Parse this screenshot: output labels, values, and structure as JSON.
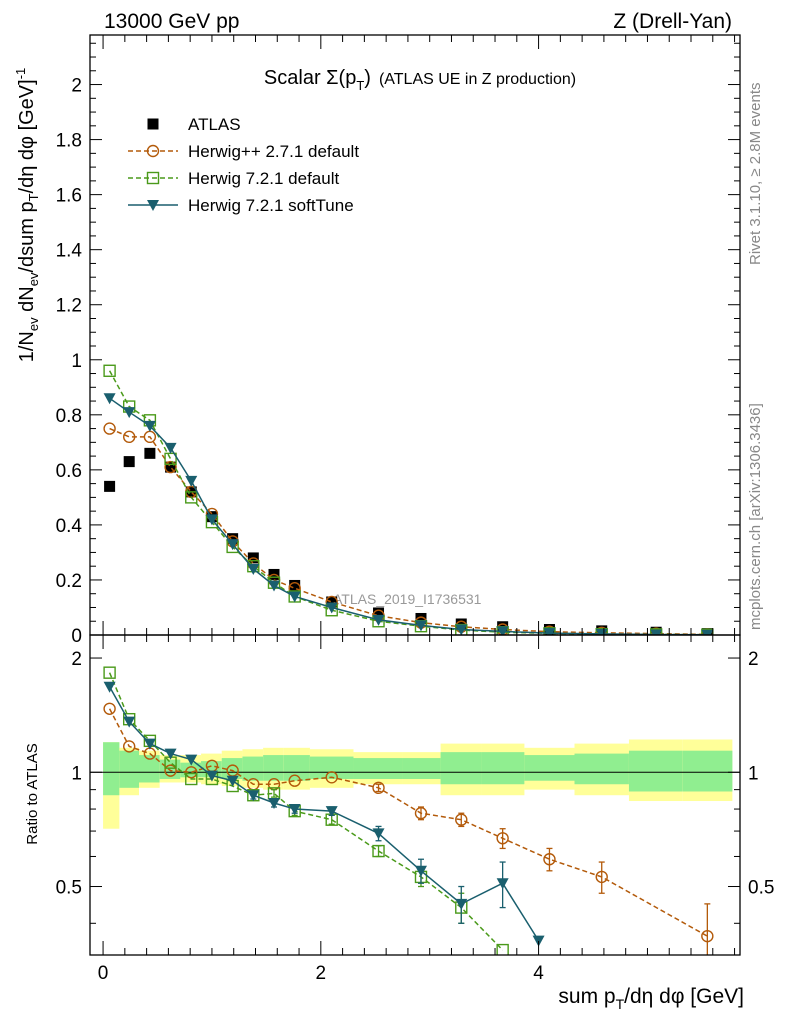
{
  "header": {
    "left": "13000 GeV pp",
    "right": "Z (Drell-Yan)"
  },
  "side_labels": {
    "rivet": "Rivet 3.1.10, ≥ 2.8M events",
    "mcplots": "mcplots.cern.ch [arXiv:1306.3436]"
  },
  "watermark": "ATLAS_2019_I1736531",
  "chart_data": [
    {
      "type": "scatter",
      "panel": "main",
      "title_main": "Scalar Σ(p",
      "title_sub": "T",
      "title_close": ")",
      "title_rest": "(ATLAS UE in Z production)",
      "ylabel": "1/N_ev dN_ev/dsum p_T/dη dφ [GeV]^-1",
      "xlim": [
        -0.12,
        5.85
      ],
      "ylim": [
        0,
        2.18
      ],
      "yticks": [
        0,
        0.2,
        0.4,
        0.6,
        0.8,
        1,
        1.2,
        1.4,
        1.6,
        1.8,
        2
      ],
      "ytick_labels": [
        "0",
        "0.2",
        "0.4",
        "0.6",
        "0.8",
        "1",
        "1.2",
        "1.4",
        "1.6",
        "1.8",
        "2"
      ],
      "legend_position": "top-left",
      "series": [
        {
          "name": "ATLAS",
          "color": "#000000",
          "marker": "square-filled",
          "line": "none",
          "x": [
            0.06,
            0.24,
            0.43,
            0.62,
            0.81,
            1.0,
            1.19,
            1.38,
            1.57,
            1.76,
            2.1,
            2.53,
            2.92,
            3.29,
            3.67,
            4.1,
            4.58,
            5.08,
            5.55
          ],
          "y": [
            0.54,
            0.63,
            0.66,
            0.61,
            0.52,
            0.43,
            0.35,
            0.28,
            0.22,
            0.18,
            0.12,
            0.08,
            0.06,
            0.04,
            0.03,
            0.02,
            0.015,
            0.01,
            0.005
          ]
        },
        {
          "name": "Herwig++ 2.7.1 default",
          "color": "#b35a0a",
          "marker": "circle-open",
          "line": "dashed",
          "x": [
            0.06,
            0.24,
            0.43,
            0.62,
            0.81,
            1.0,
            1.19,
            1.38,
            1.57,
            1.76,
            2.1,
            2.53,
            2.92,
            3.29,
            3.67,
            4.1,
            4.58,
            5.08,
            5.55
          ],
          "y": [
            0.75,
            0.72,
            0.72,
            0.61,
            0.52,
            0.44,
            0.34,
            0.26,
            0.2,
            0.17,
            0.12,
            0.07,
            0.045,
            0.03,
            0.02,
            0.012,
            0.008,
            0.005,
            0.002
          ]
        },
        {
          "name": "Herwig 7.2.1 default",
          "color": "#4a9a1a",
          "marker": "square-open",
          "line": "dashed",
          "x": [
            0.06,
            0.24,
            0.43,
            0.62,
            0.81,
            1.0,
            1.19,
            1.38,
            1.57,
            1.76,
            2.1,
            2.53,
            2.92,
            3.29,
            3.67,
            4.1,
            4.58,
            5.08,
            5.55
          ],
          "y": [
            0.96,
            0.83,
            0.78,
            0.64,
            0.5,
            0.41,
            0.32,
            0.25,
            0.19,
            0.14,
            0.09,
            0.05,
            0.032,
            0.018,
            0.01,
            0.006,
            0.003,
            0.002,
            0.001
          ]
        },
        {
          "name": "Herwig 7.2.1 softTune",
          "color": "#1a5f6e",
          "marker": "triangle-down-filled",
          "line": "solid",
          "x": [
            0.06,
            0.24,
            0.43,
            0.62,
            0.81,
            1.0,
            1.19,
            1.38,
            1.57,
            1.76,
            2.1,
            2.53,
            2.92,
            3.29,
            3.67,
            4.1,
            4.58,
            5.08,
            5.55
          ],
          "y": [
            0.86,
            0.81,
            0.76,
            0.68,
            0.56,
            0.42,
            0.33,
            0.24,
            0.18,
            0.14,
            0.1,
            0.055,
            0.035,
            0.02,
            0.013,
            0.007,
            0.004,
            0.002,
            0.001
          ]
        }
      ]
    },
    {
      "type": "scatter",
      "panel": "ratio",
      "xlabel": "sum p_T/dη dφ [GeV]",
      "ylabel": "Ratio to ATLAS",
      "xlim": [
        -0.12,
        5.85
      ],
      "ylim": [
        0.33,
        2.3
      ],
      "log_y": true,
      "xticks": [
        0,
        2,
        4
      ],
      "xtick_labels": [
        "0",
        "2",
        "4"
      ],
      "yticks": [
        0.5,
        1,
        2
      ],
      "ytick_labels": [
        "0.5",
        "1",
        "2"
      ],
      "bands": {
        "edges": [
          0,
          0.15,
          0.33,
          0.52,
          0.71,
          0.9,
          1.09,
          1.28,
          1.47,
          1.66,
          1.9,
          2.3,
          2.75,
          3.1,
          3.48,
          3.87,
          4.33,
          4.83,
          5.32,
          5.78
        ],
        "inner": [
          [
            0.87,
            1.2
          ],
          [
            0.91,
            1.14
          ],
          [
            0.94,
            1.11
          ],
          [
            0.96,
            1.08
          ],
          [
            0.97,
            1.06
          ],
          [
            0.97,
            1.07
          ],
          [
            0.96,
            1.09
          ],
          [
            0.95,
            1.1
          ],
          [
            0.95,
            1.11
          ],
          [
            0.95,
            1.11
          ],
          [
            0.96,
            1.1
          ],
          [
            0.96,
            1.09
          ],
          [
            0.96,
            1.09
          ],
          [
            0.93,
            1.13
          ],
          [
            0.93,
            1.13
          ],
          [
            0.95,
            1.11
          ],
          [
            0.93,
            1.12
          ],
          [
            0.89,
            1.14
          ],
          [
            0.89,
            1.14
          ]
        ],
        "outer": [
          [
            0.71,
            1.2
          ],
          [
            0.87,
            1.16
          ],
          [
            0.91,
            1.14
          ],
          [
            0.94,
            1.11
          ],
          [
            0.94,
            1.11
          ],
          [
            0.93,
            1.12
          ],
          [
            0.92,
            1.14
          ],
          [
            0.91,
            1.15
          ],
          [
            0.9,
            1.16
          ],
          [
            0.9,
            1.16
          ],
          [
            0.91,
            1.15
          ],
          [
            0.93,
            1.13
          ],
          [
            0.93,
            1.13
          ],
          [
            0.87,
            1.19
          ],
          [
            0.87,
            1.19
          ],
          [
            0.9,
            1.16
          ],
          [
            0.87,
            1.19
          ],
          [
            0.84,
            1.22
          ],
          [
            0.84,
            1.22
          ]
        ],
        "inner_color": "#90ee90",
        "outer_color": "#ffff99"
      },
      "series": [
        {
          "name": "Herwig++ 2.7.1 default",
          "color": "#b35a0a",
          "marker": "circle-open",
          "line": "dashed",
          "x": [
            0.06,
            0.24,
            0.43,
            0.62,
            0.81,
            1.0,
            1.19,
            1.38,
            1.57,
            1.76,
            2.1,
            2.53,
            2.92,
            3.29,
            3.67,
            4.1,
            4.58,
            5.55
          ],
          "y": [
            1.47,
            1.17,
            1.12,
            1.01,
            1.0,
            1.04,
            1.01,
            0.93,
            0.93,
            0.95,
            0.97,
            0.91,
            0.78,
            0.75,
            0.67,
            0.59,
            0.53,
            0.37
          ],
          "err": [
            0,
            0,
            0,
            0,
            0,
            0,
            0,
            0,
            0,
            0,
            0,
            0.02,
            0.03,
            0.03,
            0.04,
            0.04,
            0.05,
            0.08
          ]
        },
        {
          "name": "Herwig 7.2.1 default",
          "color": "#4a9a1a",
          "marker": "square-open",
          "line": "dashed",
          "x": [
            0.06,
            0.24,
            0.43,
            0.62,
            0.81,
            1.0,
            1.19,
            1.38,
            1.57,
            1.76,
            2.1,
            2.53,
            2.92,
            3.29,
            3.67
          ],
          "y": [
            1.83,
            1.38,
            1.21,
            1.06,
            0.96,
            0.96,
            0.92,
            0.87,
            0.88,
            0.79,
            0.75,
            0.62,
            0.53,
            0.44,
            0.34
          ],
          "err": [
            0,
            0,
            0,
            0,
            0,
            0,
            0,
            0,
            0.02,
            0.02,
            0.02,
            0.02,
            0.03,
            0.04,
            0
          ]
        },
        {
          "name": "Herwig 7.2.1 softTune",
          "color": "#1a5f6e",
          "marker": "triangle-down-filled",
          "line": "solid",
          "x": [
            0.06,
            0.24,
            0.43,
            0.62,
            0.81,
            1.0,
            1.19,
            1.38,
            1.57,
            1.76,
            2.1,
            2.53,
            2.92,
            3.29,
            3.67,
            4.0
          ],
          "y": [
            1.68,
            1.36,
            1.19,
            1.12,
            1.08,
            0.98,
            0.95,
            0.87,
            0.83,
            0.8,
            0.79,
            0.69,
            0.55,
            0.45,
            0.51,
            0.36
          ],
          "err": [
            0,
            0,
            0,
            0,
            0,
            0,
            0,
            0.02,
            0.02,
            0.02,
            0.02,
            0.03,
            0.04,
            0.05,
            0.07,
            0
          ]
        }
      ]
    }
  ]
}
